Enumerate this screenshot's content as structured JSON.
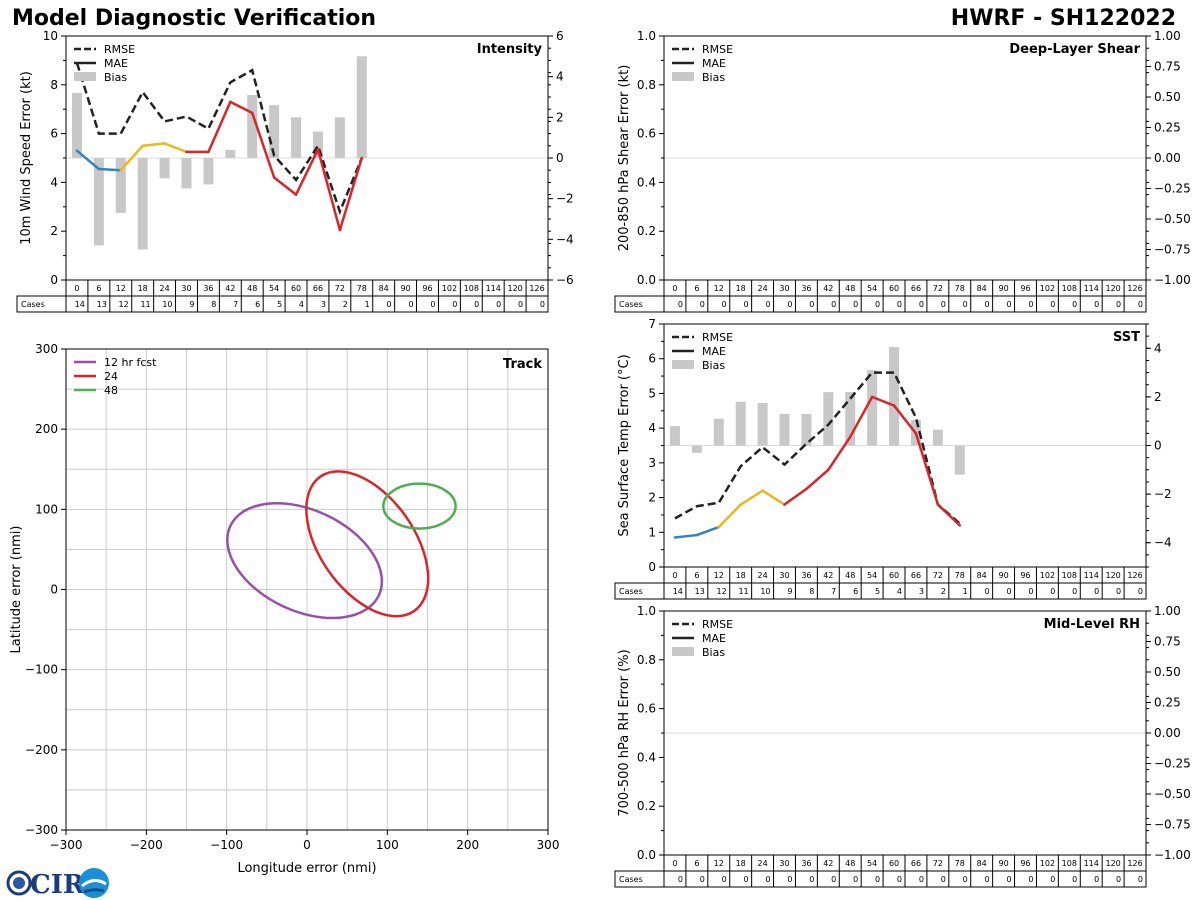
{
  "header": {
    "title": "Model Diagnostic Verification",
    "storm": "HWRF - SH122022"
  },
  "logo": {
    "text": "CIRA"
  },
  "cases_label": "Cases",
  "colors": {
    "rmse": "#222222",
    "mae": "#222222",
    "bias": "#c8c8c8",
    "seg_blue": "#3a80b9",
    "seg_yellow": "#e8b820",
    "seg_red": "#d9242b",
    "track_purple": "#9650a6",
    "track_red": "#d9242b",
    "track_green": "#4caf50",
    "grid": "#cccccc"
  },
  "legend_labels": {
    "rmse": "RMSE",
    "mae": "MAE",
    "bias": "Bias"
  },
  "chart_data": [
    {
      "id": "intensity",
      "type": "line",
      "title": "Intensity",
      "ylabel": "10m Wind Speed Error (kt)",
      "ylim": [
        0,
        10
      ],
      "yticks": [
        "0",
        "2",
        "4",
        "6",
        "8",
        "10"
      ],
      "y2lim": [
        -6,
        6
      ],
      "y2ticks": [
        "−6",
        "−4",
        "−2",
        "0",
        "2",
        "4",
        "6"
      ],
      "x": [
        0,
        6,
        12,
        18,
        24,
        30,
        36,
        42,
        48,
        54,
        60,
        66,
        72,
        78,
        84,
        90,
        96,
        102,
        108,
        114,
        120,
        126
      ],
      "xticklabels": [
        "0",
        "6",
        "12",
        "18",
        "24",
        "30",
        "36",
        "42",
        "48",
        "54",
        "60",
        "66",
        "72",
        "78",
        "84",
        "90",
        "96",
        "102",
        "108",
        "114",
        "120",
        "126"
      ],
      "cases": [
        14,
        13,
        12,
        11,
        10,
        9,
        8,
        7,
        6,
        5,
        4,
        3,
        2,
        1,
        0,
        0,
        0,
        0,
        0,
        0,
        0,
        0
      ],
      "rmse": [
        8.9,
        6.0,
        6.0,
        7.7,
        6.5,
        6.7,
        6.2,
        8.1,
        8.6,
        5.1,
        4.1,
        5.5,
        2.8,
        5.0
      ],
      "mae": [
        5.3,
        4.55,
        4.5,
        5.5,
        5.6,
        5.25,
        5.25,
        7.3,
        6.85,
        4.2,
        3.5,
        5.35,
        2.05,
        5.0
      ],
      "bias": [
        3.2,
        -4.3,
        -2.7,
        -4.5,
        -1.0,
        -1.5,
        -1.3,
        0.4,
        3.1,
        2.6,
        2.0,
        1.3,
        2.0,
        5.0
      ],
      "legend": "top-left",
      "grid": false
    },
    {
      "id": "shear",
      "type": "line",
      "title": "Deep-Layer Shear",
      "ylabel": "200-850 hPa Shear Error (kt)",
      "ylim": [
        0,
        1
      ],
      "yticks": [
        "0.0",
        "0.2",
        "0.4",
        "0.6",
        "0.8",
        "1.0"
      ],
      "y2lim": [
        -1,
        1
      ],
      "y2ticks": [
        "−1.00",
        "−0.75",
        "−0.50",
        "−0.25",
        "0.00",
        "0.25",
        "0.50",
        "0.75",
        "1.00"
      ],
      "x": [
        0,
        6,
        12,
        18,
        24,
        30,
        36,
        42,
        48,
        54,
        60,
        66,
        72,
        78,
        84,
        90,
        96,
        102,
        108,
        114,
        120,
        126
      ],
      "xticklabels": [
        "0",
        "6",
        "12",
        "18",
        "24",
        "30",
        "36",
        "42",
        "48",
        "54",
        "60",
        "66",
        "72",
        "78",
        "84",
        "90",
        "96",
        "102",
        "108",
        "114",
        "120",
        "126"
      ],
      "cases": [
        0,
        0,
        0,
        0,
        0,
        0,
        0,
        0,
        0,
        0,
        0,
        0,
        0,
        0,
        0,
        0,
        0,
        0,
        0,
        0,
        0,
        0
      ],
      "rmse": [],
      "mae": [],
      "bias": [],
      "legend": "top-left",
      "grid": false
    },
    {
      "id": "sst",
      "type": "line",
      "title": "SST",
      "ylabel": "Sea Surface Temp Error (°C)",
      "ylim": [
        0,
        7
      ],
      "yticks": [
        "0",
        "1",
        "2",
        "3",
        "4",
        "5",
        "6",
        "7"
      ],
      "y2lim": [
        -5,
        5
      ],
      "y2ticks": [
        "−4",
        "−2",
        "0",
        "2",
        "4"
      ],
      "y2tickvals": [
        -4,
        -2,
        0,
        2,
        4
      ],
      "x": [
        0,
        6,
        12,
        18,
        24,
        30,
        36,
        42,
        48,
        54,
        60,
        66,
        72,
        78,
        84,
        90,
        96,
        102,
        108,
        114,
        120,
        126
      ],
      "xticklabels": [
        "0",
        "6",
        "12",
        "18",
        "24",
        "30",
        "36",
        "42",
        "48",
        "54",
        "60",
        "66",
        "72",
        "78",
        "84",
        "90",
        "96",
        "102",
        "108",
        "114",
        "120",
        "126"
      ],
      "cases": [
        14,
        13,
        12,
        11,
        10,
        9,
        8,
        7,
        6,
        5,
        4,
        3,
        2,
        1,
        0,
        0,
        0,
        0,
        0,
        0,
        0,
        0
      ],
      "rmse": [
        1.4,
        1.75,
        1.85,
        2.9,
        3.45,
        2.95,
        3.55,
        4.1,
        4.85,
        5.6,
        5.6,
        4.3,
        1.8,
        1.25
      ],
      "mae": [
        0.85,
        0.92,
        1.15,
        1.8,
        2.2,
        1.8,
        2.25,
        2.8,
        3.75,
        4.9,
        4.65,
        3.85,
        1.8,
        1.2
      ],
      "bias": [
        0.8,
        -0.3,
        1.1,
        1.8,
        1.75,
        1.3,
        1.3,
        2.2,
        2.2,
        3.1,
        4.05,
        1.05,
        0.65,
        -1.2
      ],
      "legend": "top-left",
      "grid": false
    },
    {
      "id": "rh",
      "type": "line",
      "title": "Mid-Level RH",
      "ylabel": "700-500 hPa RH Error (%)",
      "ylim": [
        0,
        1
      ],
      "yticks": [
        "0.0",
        "0.2",
        "0.4",
        "0.6",
        "0.8",
        "1.0"
      ],
      "y2lim": [
        -1,
        1
      ],
      "y2ticks": [
        "−1.00",
        "−0.75",
        "−0.50",
        "−0.25",
        "0.00",
        "0.25",
        "0.50",
        "0.75",
        "1.00"
      ],
      "x": [
        0,
        6,
        12,
        18,
        24,
        30,
        36,
        42,
        48,
        54,
        60,
        66,
        72,
        78,
        84,
        90,
        96,
        102,
        108,
        114,
        120,
        126
      ],
      "xticklabels": [
        "0",
        "6",
        "12",
        "18",
        "24",
        "30",
        "36",
        "42",
        "48",
        "54",
        "60",
        "66",
        "72",
        "78",
        "84",
        "90",
        "96",
        "102",
        "108",
        "114",
        "120",
        "126"
      ],
      "cases": [
        0,
        0,
        0,
        0,
        0,
        0,
        0,
        0,
        0,
        0,
        0,
        0,
        0,
        0,
        0,
        0,
        0,
        0,
        0,
        0,
        0,
        0
      ],
      "rmse": [],
      "mae": [],
      "bias": [],
      "legend": "top-left",
      "grid": false
    },
    {
      "id": "track",
      "type": "scatter",
      "title": "Track",
      "xlabel": "Longitude error (nmi)",
      "ylabel": "Latitude error (nmi)",
      "xlim": [
        -300,
        300
      ],
      "ylim": [
        -300,
        300
      ],
      "xticks": [
        "−300",
        "−200",
        "−100",
        "0",
        "100",
        "200",
        "300"
      ],
      "yticks": [
        "−300",
        "−200",
        "−100",
        "0",
        "100",
        "200",
        "300"
      ],
      "ellipses": [
        {
          "name": "12 hr fcst",
          "cx": -3,
          "cy": 36,
          "a": 102,
          "b": 63,
          "angle_deg": -25
        },
        {
          "name": "24",
          "cx": 75,
          "cy": 57,
          "a": 102,
          "b": 59,
          "angle_deg": -55
        },
        {
          "name": "48",
          "cx": 140,
          "cy": 104,
          "a": 45,
          "b": 28,
          "angle_deg": 0
        }
      ],
      "legend": "top-left",
      "grid": true
    }
  ]
}
